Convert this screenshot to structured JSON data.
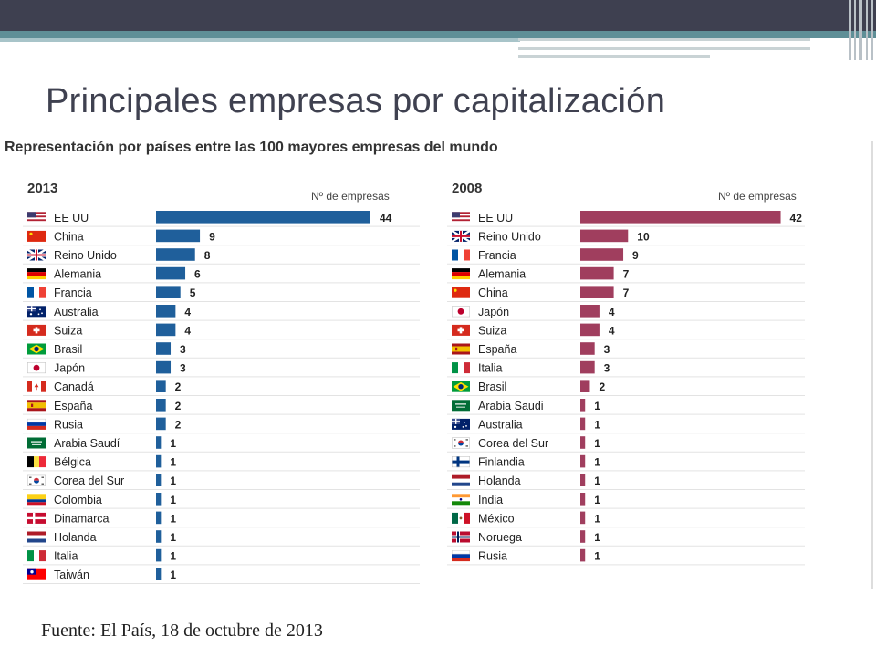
{
  "slide": {
    "title": "Principales empresas por capitalización",
    "subtitle": "Representación por países entre las 100 mayores empresas del mundo",
    "source": "Fuente: El País,  18 de octubre de 2013"
  },
  "chart_data": [
    {
      "type": "bar",
      "orientation": "horizontal",
      "panel": "2013",
      "title": "2013",
      "value_label": "Nº de empresas",
      "color": "#1f5f9b",
      "xlim": [
        0,
        44
      ],
      "grid": false,
      "categories": [
        "EE UU",
        "China",
        "Reino Unido",
        "Alemania",
        "Francia",
        "Australia",
        "Suiza",
        "Brasil",
        "Japón",
        "Canadá",
        "España",
        "Rusia",
        "Arabia Saudí",
        "Bélgica",
        "Corea del Sur",
        "Colombia",
        "Dinamarca",
        "Holanda",
        "Italia",
        "Taiwán"
      ],
      "flags": [
        "usa",
        "china",
        "uk",
        "germany",
        "france",
        "australia",
        "switzerland",
        "brazil",
        "japan",
        "canada",
        "spain",
        "russia",
        "saudi",
        "belgium",
        "korea",
        "colombia",
        "denmark",
        "netherlands",
        "italy",
        "taiwan"
      ],
      "values": [
        44,
        9,
        8,
        6,
        5,
        4,
        4,
        3,
        3,
        2,
        2,
        2,
        1,
        1,
        1,
        1,
        1,
        1,
        1,
        1
      ]
    },
    {
      "type": "bar",
      "orientation": "horizontal",
      "panel": "2008",
      "title": "2008",
      "value_label": "Nº de empresas",
      "color": "#a03e5e",
      "xlim": [
        0,
        44
      ],
      "grid": false,
      "categories": [
        "EE UU",
        "Reino Unido",
        "Francia",
        "Alemania",
        "China",
        "Japón",
        "Suiza",
        "España",
        "Italia",
        "Brasil",
        "Arabia Saudi",
        "Australia",
        "Corea del Sur",
        "Finlandia",
        "Holanda",
        "India",
        "México",
        "Noruega",
        "Rusia"
      ],
      "flags": [
        "usa",
        "uk",
        "france",
        "germany",
        "china",
        "japan",
        "switzerland",
        "spain",
        "italy",
        "brazil",
        "saudi",
        "australia",
        "korea",
        "finland",
        "netherlands",
        "india",
        "mexico",
        "norway",
        "russia"
      ],
      "values": [
        42,
        10,
        9,
        7,
        7,
        4,
        4,
        3,
        3,
        2,
        1,
        1,
        1,
        1,
        1,
        1,
        1,
        1,
        1
      ]
    }
  ]
}
